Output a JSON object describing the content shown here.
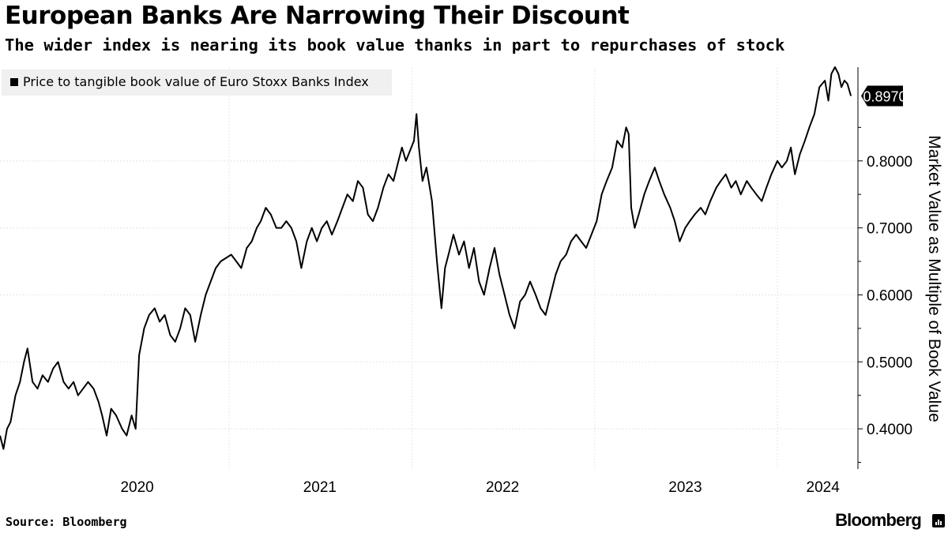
{
  "header": {
    "title": "European Banks Are Narrowing Their Discount",
    "subtitle": "The wider index is nearing its book value thanks in part to repurchases of stock"
  },
  "footer": {
    "source": "Source: Bloomberg",
    "brand": "Bloomberg"
  },
  "colors": {
    "line": "#000000",
    "grid": "#e6e6e6",
    "legend_bg": "#f0f0f0",
    "background": "#ffffff"
  },
  "chart_data": {
    "type": "line",
    "title": "European Banks Are Narrowing Their Discount",
    "subtitle": "The wider index is nearing its book value thanks in part to repurchases of stock",
    "ylabel": "Market Value as Multiple of Book Value",
    "xlabel": "",
    "y_axis_side": "right",
    "ylim": [
      0.34,
      0.94
    ],
    "yticks": [
      0.4,
      0.5,
      0.6,
      0.7,
      0.8
    ],
    "ytick_labels": [
      "0.4000",
      "0.5000",
      "0.6000",
      "0.7000",
      "0.8000"
    ],
    "xlim": [
      "2019-10-01",
      "2024-06-10"
    ],
    "xtick_labels": [
      {
        "label": "2020",
        "date": "2020-07-01"
      },
      {
        "label": "2021",
        "date": "2021-07-01"
      },
      {
        "label": "2022",
        "date": "2022-07-01"
      },
      {
        "label": "2023",
        "date": "2023-07-01"
      },
      {
        "label": "2024",
        "date": "2024-04-01"
      }
    ],
    "grid": true,
    "legend_position": "top-left",
    "last_value_label": "0.8970",
    "series": [
      {
        "name": "Price to tangible book value of Euro Stoxx Banks Index",
        "points": [
          [
            "2019-10-01",
            0.39
          ],
          [
            "2019-10-08",
            0.37
          ],
          [
            "2019-10-15",
            0.4
          ],
          [
            "2019-10-22",
            0.41
          ],
          [
            "2019-11-01",
            0.45
          ],
          [
            "2019-11-10",
            0.47
          ],
          [
            "2019-11-18",
            0.5
          ],
          [
            "2019-11-25",
            0.52
          ],
          [
            "2019-12-05",
            0.47
          ],
          [
            "2019-12-15",
            0.46
          ],
          [
            "2019-12-25",
            0.48
          ],
          [
            "2020-01-05",
            0.47
          ],
          [
            "2020-01-15",
            0.49
          ],
          [
            "2020-01-25",
            0.5
          ],
          [
            "2020-02-05",
            0.47
          ],
          [
            "2020-02-15",
            0.46
          ],
          [
            "2020-02-25",
            0.47
          ],
          [
            "2020-03-05",
            0.45
          ],
          [
            "2020-03-15",
            0.46
          ],
          [
            "2020-03-25",
            0.47
          ],
          [
            "2020-04-05",
            0.46
          ],
          [
            "2020-04-15",
            0.44
          ],
          [
            "2020-04-22",
            0.42
          ],
          [
            "2020-05-01",
            0.39
          ],
          [
            "2020-05-10",
            0.43
          ],
          [
            "2020-05-20",
            0.42
          ],
          [
            "2020-06-01",
            0.4
          ],
          [
            "2020-06-10",
            0.39
          ],
          [
            "2020-06-20",
            0.42
          ],
          [
            "2020-06-28",
            0.4
          ],
          [
            "2020-07-05",
            0.51
          ],
          [
            "2020-07-15",
            0.55
          ],
          [
            "2020-07-25",
            0.57
          ],
          [
            "2020-08-05",
            0.58
          ],
          [
            "2020-08-15",
            0.56
          ],
          [
            "2020-08-25",
            0.57
          ],
          [
            "2020-09-05",
            0.54
          ],
          [
            "2020-09-15",
            0.53
          ],
          [
            "2020-09-25",
            0.55
          ],
          [
            "2020-10-05",
            0.58
          ],
          [
            "2020-10-15",
            0.57
          ],
          [
            "2020-10-25",
            0.53
          ],
          [
            "2020-11-05",
            0.57
          ],
          [
            "2020-11-15",
            0.6
          ],
          [
            "2020-11-25",
            0.62
          ],
          [
            "2020-12-05",
            0.64
          ],
          [
            "2020-12-15",
            0.65
          ],
          [
            "2021-01-05",
            0.66
          ],
          [
            "2021-01-15",
            0.65
          ],
          [
            "2021-01-25",
            0.64
          ],
          [
            "2021-02-05",
            0.67
          ],
          [
            "2021-02-15",
            0.68
          ],
          [
            "2021-02-25",
            0.7
          ],
          [
            "2021-03-05",
            0.71
          ],
          [
            "2021-03-15",
            0.73
          ],
          [
            "2021-03-25",
            0.72
          ],
          [
            "2021-04-05",
            0.7
          ],
          [
            "2021-04-15",
            0.7
          ],
          [
            "2021-04-25",
            0.71
          ],
          [
            "2021-05-05",
            0.7
          ],
          [
            "2021-05-15",
            0.68
          ],
          [
            "2021-05-25",
            0.64
          ],
          [
            "2021-06-05",
            0.68
          ],
          [
            "2021-06-15",
            0.7
          ],
          [
            "2021-06-25",
            0.68
          ],
          [
            "2021-07-05",
            0.7
          ],
          [
            "2021-07-15",
            0.71
          ],
          [
            "2021-07-25",
            0.69
          ],
          [
            "2021-08-05",
            0.71
          ],
          [
            "2021-08-15",
            0.73
          ],
          [
            "2021-08-25",
            0.75
          ],
          [
            "2021-09-05",
            0.74
          ],
          [
            "2021-09-15",
            0.77
          ],
          [
            "2021-09-25",
            0.76
          ],
          [
            "2021-10-05",
            0.72
          ],
          [
            "2021-10-15",
            0.71
          ],
          [
            "2021-10-25",
            0.73
          ],
          [
            "2021-11-05",
            0.76
          ],
          [
            "2021-11-15",
            0.78
          ],
          [
            "2021-11-25",
            0.77
          ],
          [
            "2021-12-05",
            0.8
          ],
          [
            "2021-12-12",
            0.82
          ],
          [
            "2021-12-20",
            0.8
          ],
          [
            "2022-01-05",
            0.83
          ],
          [
            "2022-01-10",
            0.87
          ],
          [
            "2022-01-15",
            0.82
          ],
          [
            "2022-01-22",
            0.77
          ],
          [
            "2022-01-30",
            0.79
          ],
          [
            "2022-02-10",
            0.74
          ],
          [
            "2022-02-20",
            0.65
          ],
          [
            "2022-03-01",
            0.58
          ],
          [
            "2022-03-08",
            0.64
          ],
          [
            "2022-03-15",
            0.66
          ],
          [
            "2022-03-25",
            0.69
          ],
          [
            "2022-04-05",
            0.66
          ],
          [
            "2022-04-15",
            0.68
          ],
          [
            "2022-04-25",
            0.64
          ],
          [
            "2022-05-05",
            0.67
          ],
          [
            "2022-05-15",
            0.62
          ],
          [
            "2022-05-25",
            0.6
          ],
          [
            "2022-06-05",
            0.64
          ],
          [
            "2022-06-15",
            0.67
          ],
          [
            "2022-06-25",
            0.63
          ],
          [
            "2022-07-05",
            0.6
          ],
          [
            "2022-07-15",
            0.57
          ],
          [
            "2022-07-25",
            0.55
          ],
          [
            "2022-08-05",
            0.59
          ],
          [
            "2022-08-15",
            0.6
          ],
          [
            "2022-08-25",
            0.62
          ],
          [
            "2022-09-05",
            0.6
          ],
          [
            "2022-09-15",
            0.58
          ],
          [
            "2022-09-25",
            0.57
          ],
          [
            "2022-10-05",
            0.6
          ],
          [
            "2022-10-15",
            0.63
          ],
          [
            "2022-10-25",
            0.65
          ],
          [
            "2022-11-05",
            0.66
          ],
          [
            "2022-11-15",
            0.68
          ],
          [
            "2022-11-25",
            0.69
          ],
          [
            "2022-12-05",
            0.68
          ],
          [
            "2022-12-15",
            0.67
          ],
          [
            "2023-01-05",
            0.71
          ],
          [
            "2023-01-15",
            0.75
          ],
          [
            "2023-01-25",
            0.77
          ],
          [
            "2023-02-05",
            0.79
          ],
          [
            "2023-02-15",
            0.83
          ],
          [
            "2023-02-25",
            0.82
          ],
          [
            "2023-03-05",
            0.85
          ],
          [
            "2023-03-10",
            0.84
          ],
          [
            "2023-03-15",
            0.73
          ],
          [
            "2023-03-22",
            0.7
          ],
          [
            "2023-03-30",
            0.72
          ],
          [
            "2023-04-10",
            0.75
          ],
          [
            "2023-04-20",
            0.77
          ],
          [
            "2023-05-01",
            0.79
          ],
          [
            "2023-05-10",
            0.77
          ],
          [
            "2023-05-20",
            0.75
          ],
          [
            "2023-06-01",
            0.73
          ],
          [
            "2023-06-10",
            0.71
          ],
          [
            "2023-06-20",
            0.68
          ],
          [
            "2023-07-01",
            0.7
          ],
          [
            "2023-07-10",
            0.71
          ],
          [
            "2023-07-20",
            0.72
          ],
          [
            "2023-08-01",
            0.73
          ],
          [
            "2023-08-10",
            0.72
          ],
          [
            "2023-08-20",
            0.74
          ],
          [
            "2023-09-01",
            0.76
          ],
          [
            "2023-09-10",
            0.77
          ],
          [
            "2023-09-20",
            0.78
          ],
          [
            "2023-10-01",
            0.76
          ],
          [
            "2023-10-10",
            0.77
          ],
          [
            "2023-10-20",
            0.75
          ],
          [
            "2023-11-01",
            0.77
          ],
          [
            "2023-11-10",
            0.76
          ],
          [
            "2023-11-20",
            0.75
          ],
          [
            "2023-12-01",
            0.74
          ],
          [
            "2023-12-10",
            0.76
          ],
          [
            "2023-12-20",
            0.78
          ],
          [
            "2024-01-01",
            0.8
          ],
          [
            "2024-01-10",
            0.79
          ],
          [
            "2024-01-20",
            0.8
          ],
          [
            "2024-01-28",
            0.82
          ],
          [
            "2024-02-05",
            0.78
          ],
          [
            "2024-02-15",
            0.81
          ],
          [
            "2024-02-25",
            0.83
          ],
          [
            "2024-03-05",
            0.85
          ],
          [
            "2024-03-15",
            0.87
          ],
          [
            "2024-03-25",
            0.91
          ],
          [
            "2024-04-05",
            0.92
          ],
          [
            "2024-04-12",
            0.89
          ],
          [
            "2024-04-18",
            0.93
          ],
          [
            "2024-04-25",
            0.94
          ],
          [
            "2024-05-02",
            0.93
          ],
          [
            "2024-05-08",
            0.91
          ],
          [
            "2024-05-14",
            0.92
          ],
          [
            "2024-05-20",
            0.915
          ],
          [
            "2024-05-27",
            0.897
          ]
        ]
      }
    ]
  }
}
